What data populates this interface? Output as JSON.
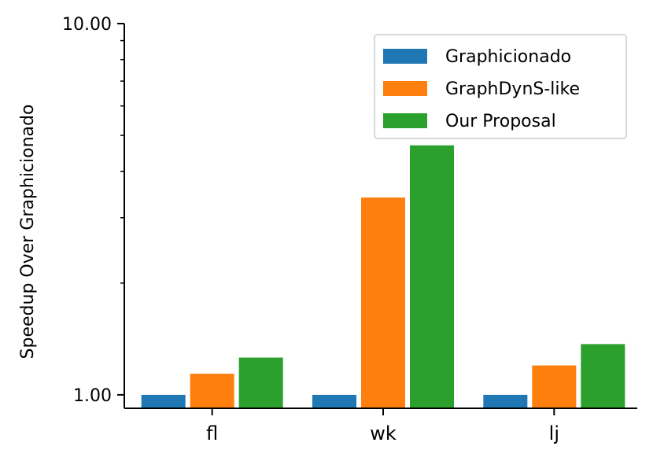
{
  "chart_data": {
    "type": "bar",
    "title": "",
    "xlabel": "",
    "ylabel": "Speedup Over Graphicionado",
    "yscale": "log",
    "ylim": [
      0.92,
      10.0
    ],
    "yticks": [
      1.0,
      10.0
    ],
    "ytick_labels": [
      "1.00",
      "10.00"
    ],
    "categories": [
      "fl",
      "wk",
      "lj"
    ],
    "series": [
      {
        "name": "Graphicionado",
        "color": "#1f77b4",
        "values": [
          1.0,
          1.0,
          1.0
        ]
      },
      {
        "name": "GraphDynS-like",
        "color": "#ff7f0e",
        "values": [
          1.14,
          3.4,
          1.2
        ]
      },
      {
        "name": "Our Proposal",
        "color": "#2ca02c",
        "values": [
          1.26,
          4.7,
          1.37
        ]
      }
    ],
    "legend": "top-right",
    "grid": false
  }
}
